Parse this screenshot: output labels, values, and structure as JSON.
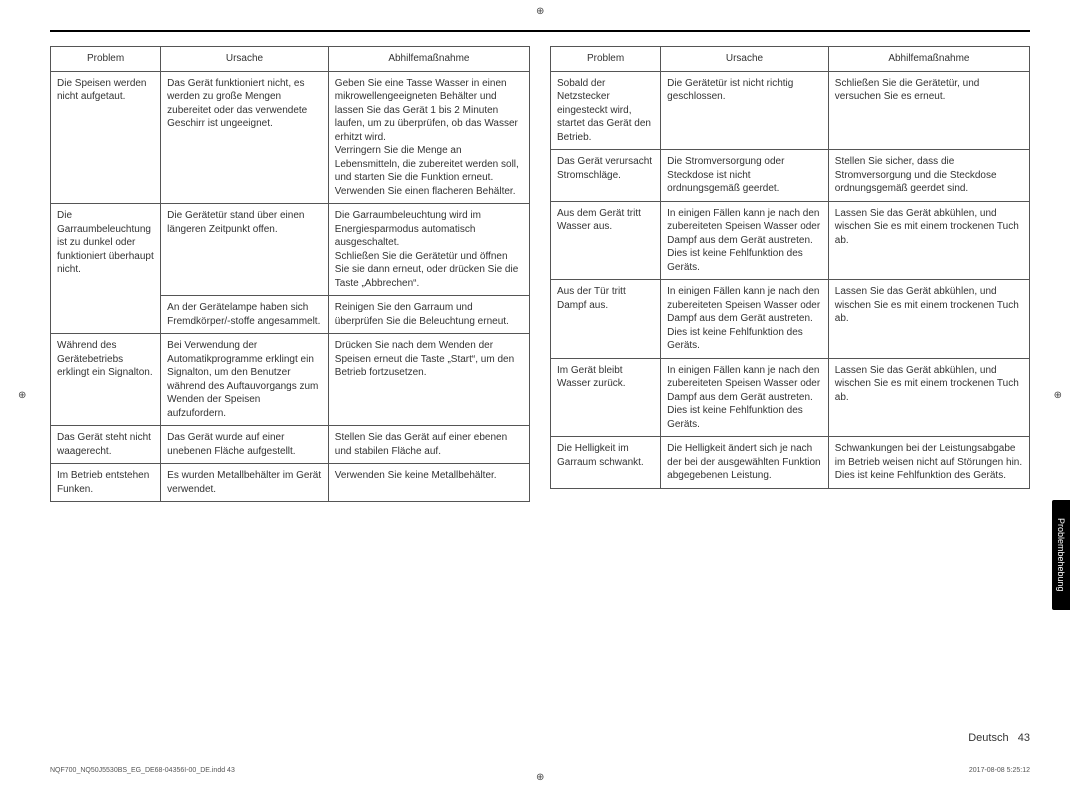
{
  "headers": {
    "problem": "Problem",
    "cause": "Ursache",
    "fix": "Abhilfemaßnahme"
  },
  "left_rows": [
    {
      "rowspan_p": 1,
      "problem": "Die Speisen werden nicht aufgetaut.",
      "cause": "Das Gerät funktioniert nicht, es werden zu große Mengen zubereitet oder das verwendete Geschirr ist ungeeignet.",
      "fix": "Geben Sie eine Tasse Wasser in einen mikrowellengeeigneten Behälter und lassen Sie das Gerät 1 bis 2 Minuten laufen, um zu überprüfen, ob das Wasser erhitzt wird.\nVerringern Sie die Menge an Lebensmitteln, die zubereitet werden soll, und starten Sie die Funktion erneut.\nVerwenden Sie einen flacheren Behälter."
    },
    {
      "rowspan_p": 2,
      "problem": "Die Garraumbeleuchtung ist zu dunkel oder funktioniert überhaupt nicht.",
      "cause": "Die Gerätetür stand über einen längeren Zeitpunkt offen.",
      "fix": "Die Garraumbeleuchtung wird im Energiesparmodus automatisch ausgeschaltet.\nSchließen Sie die Gerätetür und öffnen Sie sie dann erneut, oder drücken Sie die Taste „Abbrechen“."
    },
    {
      "cause": "An der Gerätelampe haben sich Fremdkörper/-stoffe angesammelt.",
      "fix": "Reinigen Sie den Garraum und überprüfen Sie die Beleuchtung erneut."
    },
    {
      "rowspan_p": 1,
      "problem": "Während des Gerätebetriebs erklingt ein Signalton.",
      "cause": "Bei Verwendung der Automatikprogramme erklingt ein Signalton, um den Benutzer während des Auftauvorgangs zum Wenden der Speisen aufzufordern.",
      "fix": "Drücken Sie nach dem Wenden der Speisen erneut die Taste „Start“, um den Betrieb fortzusetzen."
    },
    {
      "rowspan_p": 1,
      "problem": "Das Gerät steht nicht waagerecht.",
      "cause": "Das Gerät wurde auf einer unebenen Fläche aufgestellt.",
      "fix": "Stellen Sie das Gerät auf einer ebenen und stabilen Fläche auf."
    },
    {
      "rowspan_p": 1,
      "problem": "Im Betrieb entstehen Funken.",
      "cause": "Es wurden Metallbehälter im Gerät verwendet.",
      "fix": "Verwenden Sie keine Metallbehälter."
    }
  ],
  "right_rows": [
    {
      "problem": "Sobald der Netzstecker eingesteckt wird, startet das Gerät den Betrieb.",
      "cause": "Die Gerätetür ist nicht richtig geschlossen.",
      "fix": "Schließen Sie die Gerätetür, und versuchen Sie es erneut."
    },
    {
      "problem": "Das Gerät verursacht Stromschläge.",
      "cause": "Die Stromversorgung oder Steckdose ist nicht ordnungsgemäß geerdet.",
      "fix": "Stellen Sie sicher, dass die Stromversorgung und die Steckdose ordnungsgemäß geerdet sind."
    },
    {
      "problem": "Aus dem Gerät tritt Wasser aus.",
      "cause": "In einigen Fällen kann je nach den zubereiteten Speisen Wasser oder Dampf aus dem Gerät austreten.\nDies ist keine Fehlfunktion des Geräts.",
      "fix": "Lassen Sie das Gerät abkühlen, und wischen Sie es mit einem trockenen Tuch ab."
    },
    {
      "problem": "Aus der Tür tritt Dampf aus.",
      "cause": "In einigen Fällen kann je nach den zubereiteten Speisen Wasser oder Dampf aus dem Gerät austreten.\nDies ist keine Fehlfunktion des Geräts.",
      "fix": "Lassen Sie das Gerät abkühlen, und wischen Sie es mit einem trockenen Tuch ab."
    },
    {
      "problem": "Im Gerät bleibt Wasser zurück.",
      "cause": "In einigen Fällen kann je nach den zubereiteten Speisen Wasser oder Dampf aus dem Gerät austreten.\nDies ist keine Fehlfunktion des Geräts.",
      "fix": "Lassen Sie das Gerät abkühlen, und wischen Sie es mit einem trockenen Tuch ab."
    },
    {
      "problem": "Die Helligkeit im Garraum schwankt.",
      "cause": "Die Helligkeit ändert sich je nach der bei der ausgewählten Funktion abgegebenen Leistung.",
      "fix": "Schwankungen bei der Leistungsabgabe im Betrieb weisen nicht auf Störungen hin. Dies ist keine Fehlfunktion des Geräts."
    }
  ],
  "side_tab": "Problembehebung",
  "foot_lang": "Deutsch",
  "foot_page": "43",
  "print_file": "NQF700_NQ50J5530BS_EG_DE68-04356I-00_DE.indd   43",
  "print_ts": "2017-08-08   5:25:12",
  "marker": "⊕"
}
